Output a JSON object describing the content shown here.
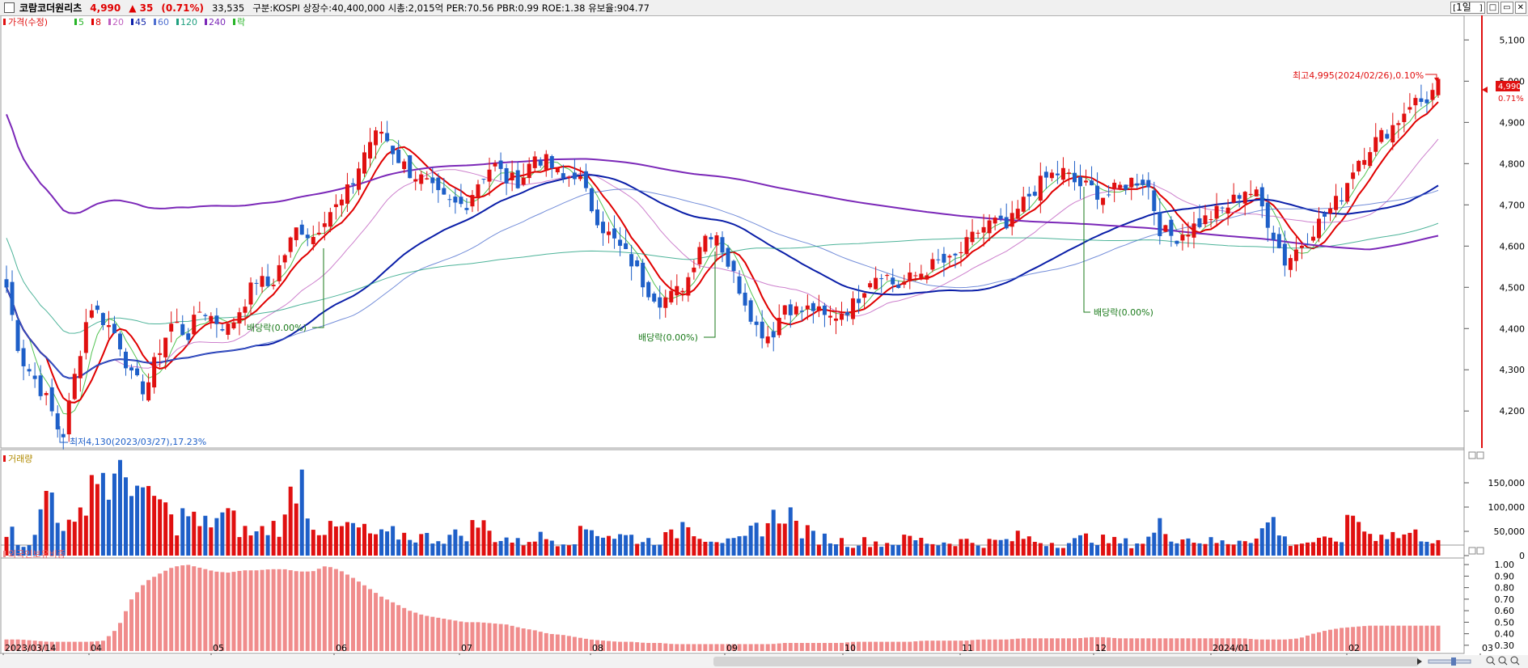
{
  "header": {
    "stock_name": "코람코더원리츠",
    "price": "4,990",
    "change": "▲ 35",
    "change_pct": "(0.71%)",
    "volume": "33,535",
    "info": "구분:KOSPI 상장수:40,400,000 시총:2,015억 PER:70.56 PBR:0.99 ROE:1.38 유보율:904.77",
    "period_button": "1일",
    "controls": [
      "□",
      "▭",
      "✕"
    ]
  },
  "legend": {
    "price_label": "가격(수정)",
    "ma": [
      {
        "label": "5",
        "color": "#27b427"
      },
      {
        "label": "8",
        "color": "#e00000"
      },
      {
        "label": "20",
        "color": "#c060c0"
      },
      {
        "label": "45",
        "color": "#0a1ea8"
      },
      {
        "label": "60",
        "color": "#5070d0"
      },
      {
        "label": "120",
        "color": "#20a080"
      },
      {
        "label": "240",
        "color": "#7b28b8"
      }
    ],
    "dividend_label": "락"
  },
  "volume_panel": {
    "title": "거래량",
    "ticks": [
      "150,000",
      "100,000",
      "50,000",
      "0"
    ]
  },
  "foreign_panel": {
    "title": "외국인보유비중",
    "ticks": [
      "1.00",
      "0.90",
      "0.80",
      "0.70",
      "0.60",
      "0.50",
      "0.40",
      "0.30"
    ]
  },
  "colors": {
    "up": "#e01010",
    "down": "#1e5fc8",
    "neutral": "#000000",
    "foreign_bar": "#f08c8c"
  },
  "chart_data": {
    "type": "candlestick",
    "y_axis_ticks": [
      4200,
      4300,
      4400,
      4500,
      4600,
      4700,
      4800,
      4900,
      5000,
      5100
    ],
    "ylim": [
      4120,
      5140
    ],
    "x_axis_labels": [
      "2023/03/14",
      "04",
      "05",
      "06",
      "07",
      "08",
      "09",
      "10",
      "11",
      "12",
      "2024/01",
      "02",
      "03"
    ],
    "current_price": "4,990",
    "current_pct": "0.71%",
    "annotations": [
      {
        "text": "최고4,995(2024/02/26),0.10%"
      },
      {
        "text": "최저4,130(2023/03/27),17.23%"
      },
      {
        "text": "배당락(0.00%)"
      },
      {
        "text": "배당락(0.00%)"
      },
      {
        "text": "배당락(0.00%)"
      }
    ],
    "price_path": [
      4500,
      4330,
      4280,
      4220,
      4130,
      4300,
      4460,
      4420,
      4380,
      4280,
      4250,
      4350,
      4420,
      4380,
      4450,
      4420,
      4400,
      4460,
      4520,
      4500,
      4580,
      4650,
      4620,
      4680,
      4700,
      4760,
      4850,
      4880,
      4820,
      4780,
      4760,
      4720,
      4700,
      4700,
      4760,
      4800,
      4760,
      4760,
      4820,
      4800,
      4760,
      4780,
      4700,
      4640,
      4600,
      4560,
      4500,
      4470,
      4480,
      4520,
      4620,
      4640,
      4550,
      4480,
      4400,
      4380,
      4460,
      4440,
      4450,
      4420,
      4440,
      4460,
      4520,
      4540,
      4500,
      4520,
      4540,
      4560,
      4560,
      4600,
      4640,
      4660,
      4640,
      4700,
      4740,
      4770,
      4780,
      4750,
      4740,
      4720,
      4740,
      4760,
      4760,
      4640,
      4620,
      4640,
      4660,
      4680,
      4700,
      4740,
      4720,
      4640,
      4560,
      4600,
      4640,
      4680,
      4720,
      4800,
      4840,
      4870,
      4900,
      4950,
      4950,
      4990
    ],
    "volume_range": [
      0,
      180000
    ],
    "volume_path": [
      60000,
      25000,
      30000,
      150000,
      70000,
      50000,
      170000,
      160000,
      140000,
      180000,
      100000,
      120000,
      60000,
      90000,
      55000,
      80000,
      80000,
      50000,
      45000,
      60000,
      65000,
      190000,
      70000,
      50000,
      55000,
      60000,
      45000,
      40000,
      45000,
      40000,
      38000,
      35000,
      40000,
      45000,
      70000,
      40000,
      35000,
      25000,
      40000,
      35000,
      30000,
      38000,
      60000,
      45000,
      40000,
      38000,
      30000,
      35000,
      40000,
      80000,
      40000,
      38000,
      25000,
      30000,
      60000,
      70000,
      100000,
      55000,
      40000,
      35000,
      30000,
      25000,
      30000,
      25000,
      28000,
      35000,
      30000,
      25000,
      30000,
      30000,
      25000,
      28000,
      30000,
      40000,
      30000,
      28000,
      25000,
      30000,
      40000,
      30000,
      28000,
      25000,
      30000,
      60000,
      40000,
      35000,
      30000,
      28000,
      25000,
      40000,
      35000,
      80000,
      30000,
      25000,
      30000,
      28000,
      35000,
      90000,
      40000,
      50000,
      40000,
      45000,
      40000,
      34000
    ],
    "foreign_ratio_range": [
      0.25,
      1.05
    ],
    "foreign_ratio_path": [
      0.35,
      0.35,
      0.34,
      0.33,
      0.33,
      0.33,
      0.33,
      0.34,
      0.45,
      0.7,
      0.85,
      0.92,
      0.98,
      1.0,
      0.97,
      0.94,
      0.93,
      0.95,
      0.95,
      0.96,
      0.96,
      0.94,
      0.94,
      0.99,
      0.95,
      0.88,
      0.8,
      0.72,
      0.66,
      0.6,
      0.56,
      0.54,
      0.52,
      0.5,
      0.5,
      0.49,
      0.48,
      0.45,
      0.43,
      0.4,
      0.39,
      0.37,
      0.35,
      0.34,
      0.33,
      0.33,
      0.32,
      0.32,
      0.31,
      0.31,
      0.31,
      0.31,
      0.31,
      0.31,
      0.31,
      0.31,
      0.32,
      0.32,
      0.32,
      0.32,
      0.32,
      0.33,
      0.33,
      0.33,
      0.33,
      0.33,
      0.34,
      0.34,
      0.34,
      0.34,
      0.35,
      0.35,
      0.35,
      0.36,
      0.36,
      0.36,
      0.36,
      0.36,
      0.37,
      0.37,
      0.36,
      0.36,
      0.36,
      0.36,
      0.36,
      0.36,
      0.36,
      0.36,
      0.36,
      0.36,
      0.35,
      0.35,
      0.35,
      0.36,
      0.4,
      0.43,
      0.45,
      0.46,
      0.47,
      0.47,
      0.47,
      0.47,
      0.47,
      0.47
    ]
  }
}
